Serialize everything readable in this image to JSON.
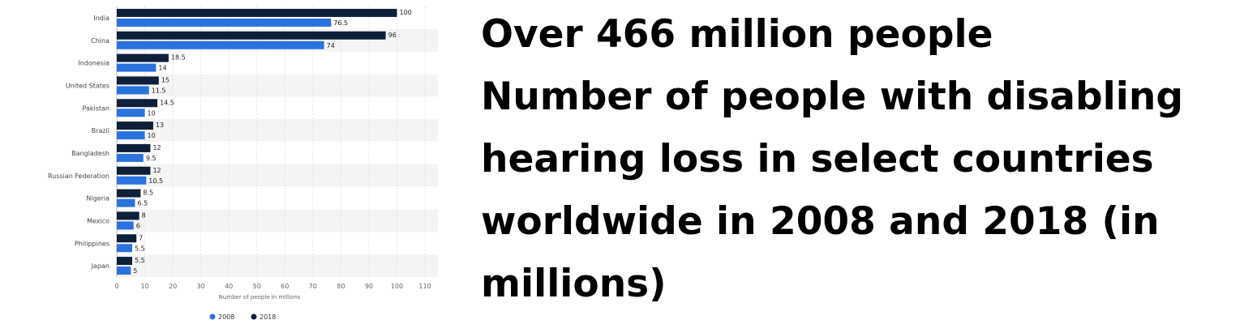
{
  "headline": {
    "lines": [
      "Over 466 million people",
      "Number of people with disabling",
      "hearing loss in select countries",
      "worldwide in 2008 and 2018 (in",
      "millions)"
    ]
  },
  "colors": {
    "series_2008": "#2a72dd",
    "series_2018": "#0e1f3a",
    "band": "#f4f4f4",
    "grid": "#e2e2e2"
  },
  "chart_data": {
    "type": "bar",
    "orientation": "horizontal",
    "categories": [
      "India",
      "China",
      "Indonesia",
      "United States",
      "Pakistan",
      "Brazil",
      "Bangladesh",
      "Russian Federation",
      "Nigeria",
      "Mexico",
      "Philippines",
      "Japan"
    ],
    "series": [
      {
        "name": "2018",
        "values": [
          100,
          96,
          18.5,
          15,
          14.5,
          13,
          12,
          12,
          8.5,
          8,
          7,
          5.5
        ],
        "labels": [
          "100",
          "96",
          "18.5",
          "15",
          "14.5",
          "13",
          "12",
          "12",
          "8.5",
          "8",
          "7",
          "5.5"
        ]
      },
      {
        "name": "2008",
        "values": [
          76.5,
          74,
          14,
          11.5,
          10,
          10,
          9.5,
          10.5,
          6.5,
          6,
          5.5,
          5
        ],
        "labels": [
          "76.5",
          "74",
          "14",
          "11.5",
          "10",
          "10",
          "9.5",
          "10.5",
          "6.5",
          "6",
          "5.5",
          "5"
        ]
      }
    ],
    "xlabel": "Number of people in millions",
    "ylabel": "",
    "xlim": [
      0,
      110
    ],
    "ticks": [
      "0",
      "10",
      "20",
      "30",
      "40",
      "50",
      "60",
      "70",
      "80",
      "90",
      "100",
      "110"
    ],
    "grid": true,
    "legend": {
      "position": "bottom",
      "entries": [
        "2008",
        "2018"
      ]
    }
  }
}
